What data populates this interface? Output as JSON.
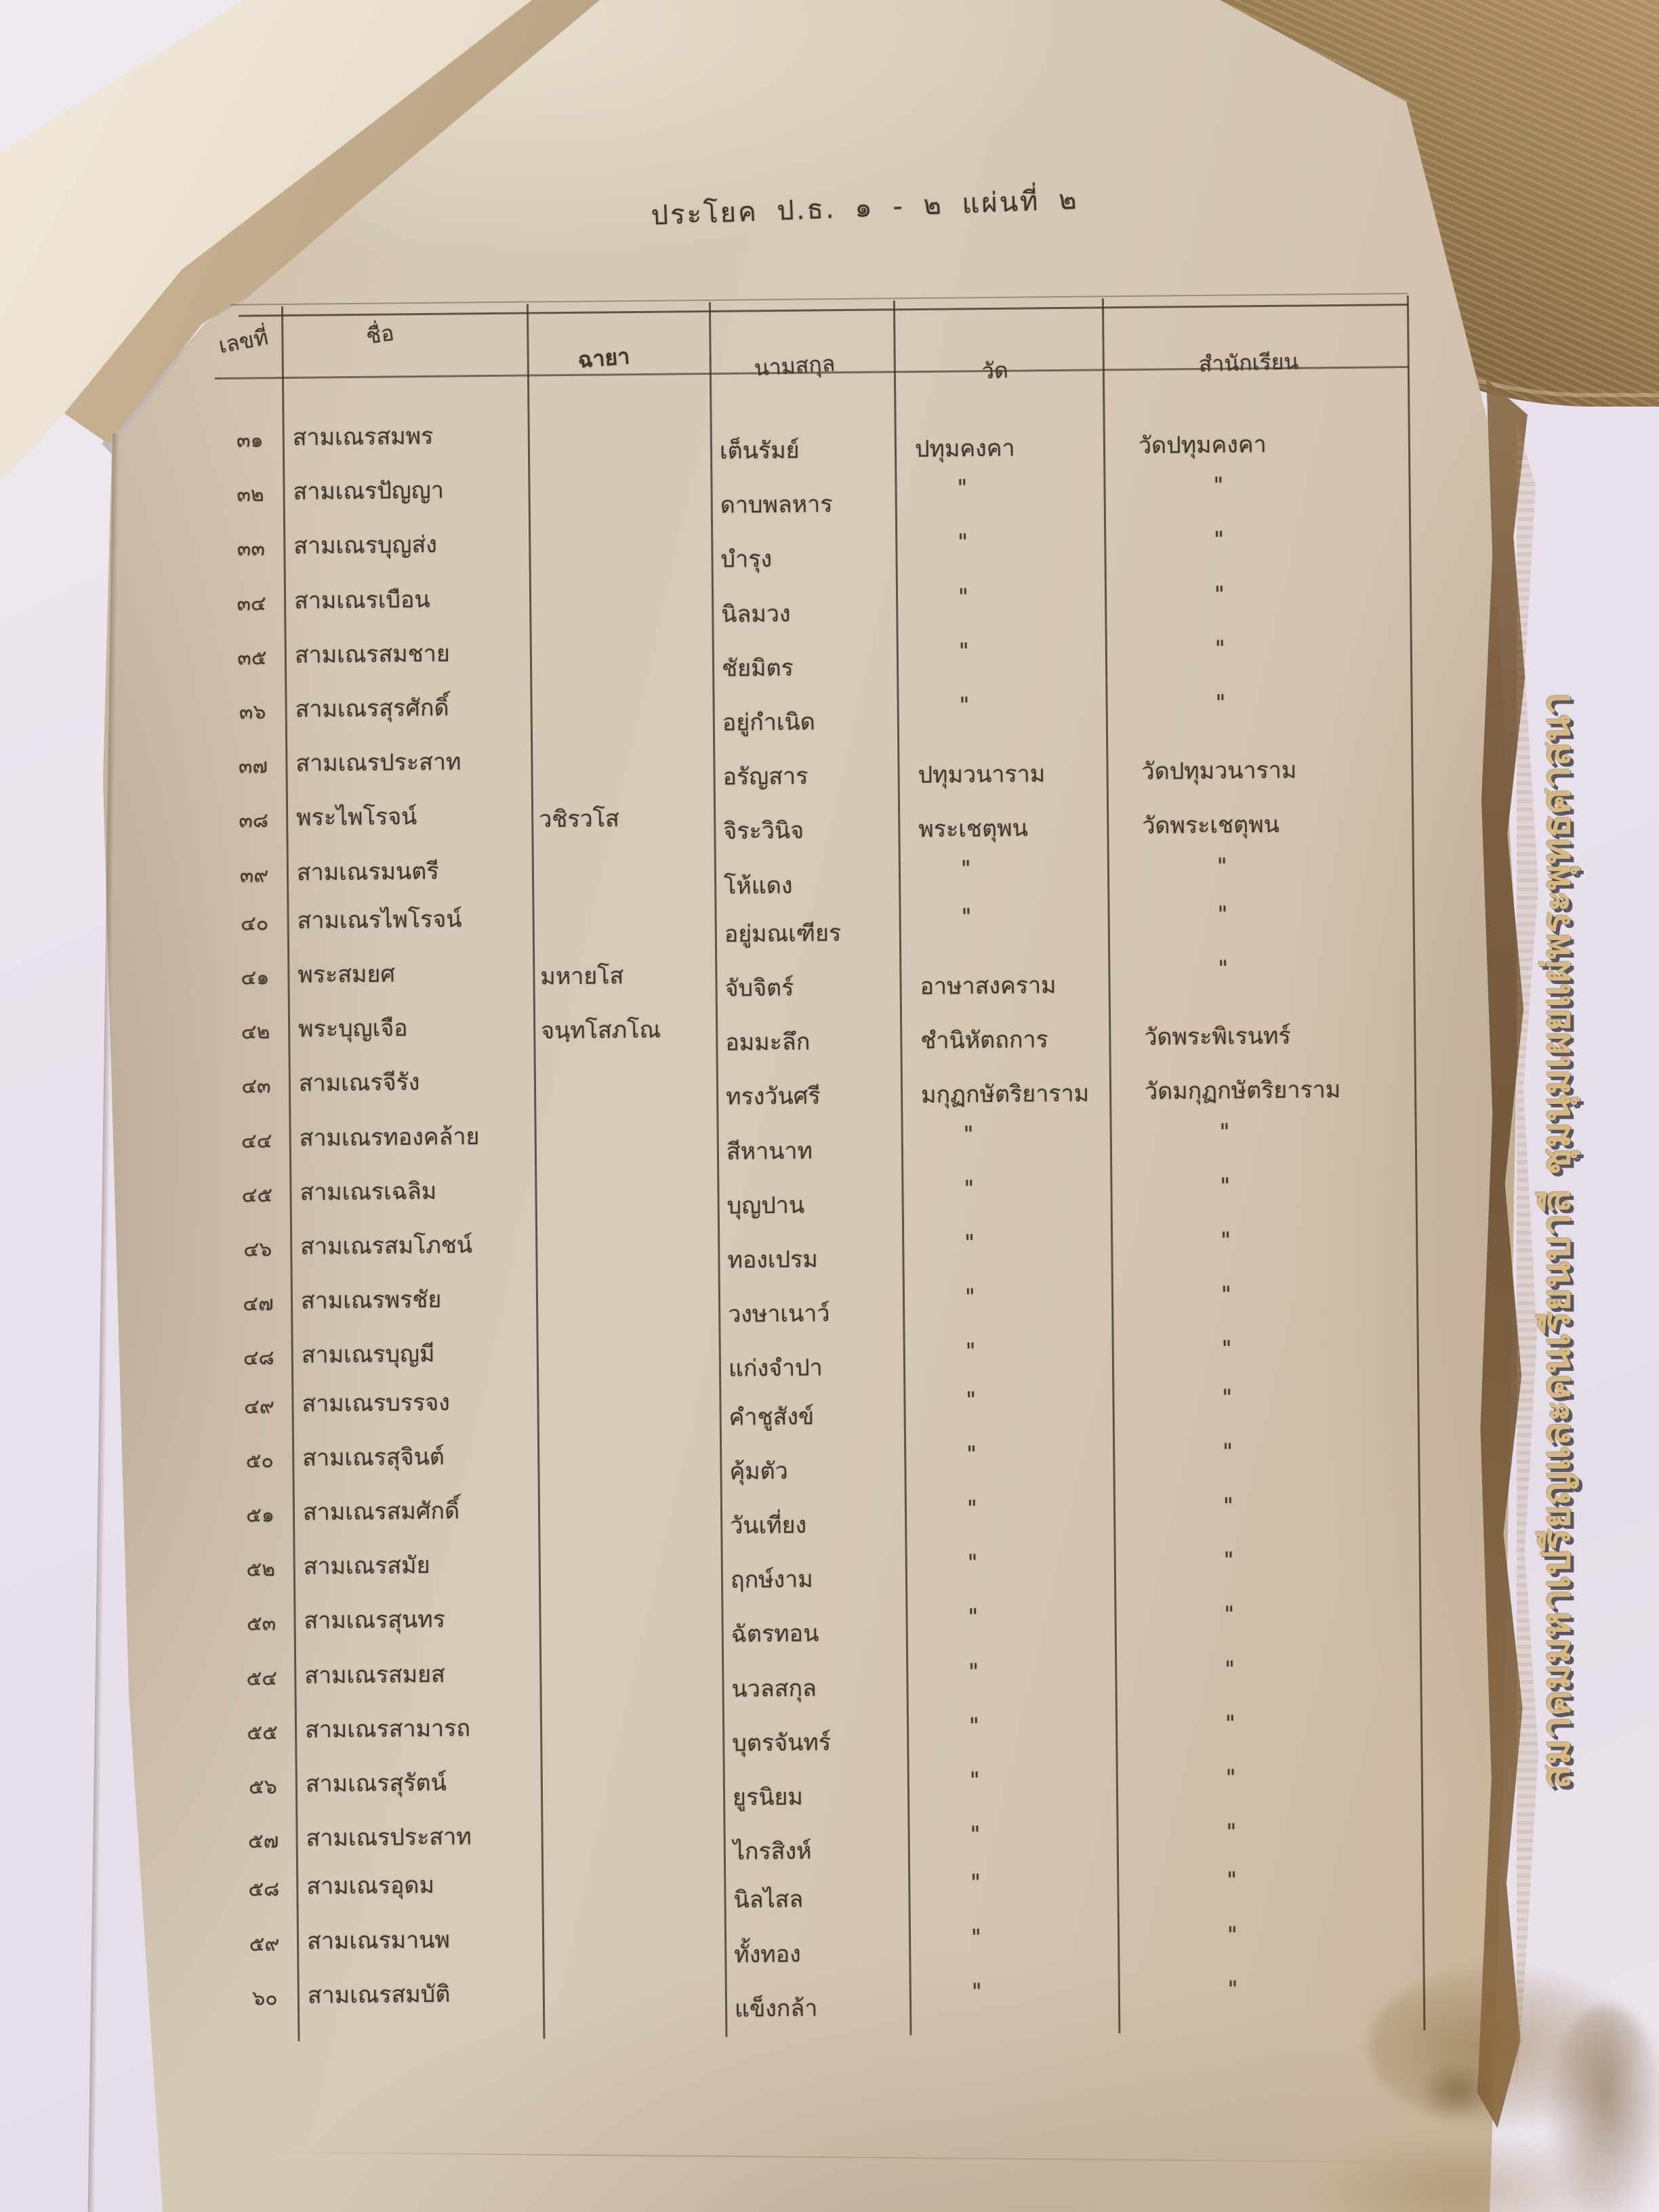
{
  "title": "ประโยค ป.ธ. ๑ - ๒ แผ่นที่ ๒",
  "watermark": {
    "text": "สมาคมมหาเปรียญและคนเรียนบาลี ชุมนุมเผยแผ่พระพุทธศาสนา",
    "color": "#d9b87e"
  },
  "colors": {
    "background": "#e8e1ea",
    "paper": "#d3c5b2",
    "ink": "#42372b",
    "table_line": "#3e3328",
    "page_stack_brown": "#8d6f46",
    "stain_brown": "#8a6a3f"
  },
  "table": {
    "headers": [
      "เลขที่",
      "ชื่อ",
      "ฉายา",
      "นามสกุล",
      "วัด",
      "สำนักเรียน"
    ],
    "ditto_mark": "\"",
    "rows": [
      [
        "๓๑",
        "สามเณรสมพร",
        "",
        "เต็นรัมย์",
        "ปทุมคงคา",
        "วัดปทุมคงคา"
      ],
      [
        "๓๒",
        "สามเณรปัญญา",
        "",
        "ดาบพลหาร",
        "\"",
        "\""
      ],
      [
        "๓๓",
        "สามเณรบุญส่ง",
        "",
        "บำรุง",
        "\"",
        "\""
      ],
      [
        "๓๔",
        "สามเณรเบือน",
        "",
        "นิลมวง",
        "\"",
        "\""
      ],
      [
        "๓๕",
        "สามเณรสมชาย",
        "",
        "ชัยมิตร",
        "\"",
        "\""
      ],
      [
        "๓๖",
        "สามเณรสุรศักดิ์",
        "",
        "อยู่กำเนิด",
        "\"",
        "\""
      ],
      [
        "๓๗",
        "สามเณรประสาท",
        "",
        "อรัญสาร",
        "ปทุมวนาราม",
        "วัดปทุมวนาราม"
      ],
      [
        "๓๘",
        "พระไพโรจน์",
        "วชิรวโส",
        "จิระวินิจ",
        "พระเชตุพน",
        "วัดพระเชตุพน"
      ],
      [
        "๓๙",
        "สามเณรมนตรี",
        "",
        "โห้แดง",
        "\"",
        "\""
      ],
      [
        "๔๐",
        "สามเณรไพโรจน์",
        "",
        "อยู่มณเฑียร",
        "\"",
        "\""
      ],
      [
        "๔๑",
        "พระสมยศ",
        "มหายโส",
        "จับจิตร์",
        "อาษาสงคราม",
        "\""
      ],
      [
        "๔๒",
        "พระบุญเจือ",
        "จนฺทโสภโณ",
        "อมมะลึก",
        "ชำนิหัตถการ",
        "วัดพระพิเรนทร์"
      ],
      [
        "๔๓",
        "สามเณรจีรัง",
        "",
        "ทรงวันศรี",
        "มกุฏกษัตริยาราม",
        "วัดมกุฏกษัตริยาราม"
      ],
      [
        "๔๔",
        "สามเณรทองคล้าย",
        "",
        "สีหานาท",
        "\"",
        "\""
      ],
      [
        "๔๕",
        "สามเณรเฉลิม",
        "",
        "บุญปาน",
        "\"",
        "\""
      ],
      [
        "๔๖",
        "สามเณรสมโภชน์",
        "",
        "ทองเปรม",
        "\"",
        "\""
      ],
      [
        "๔๗",
        "สามเณรพรชัย",
        "",
        "วงษาเนาว์",
        "\"",
        "\""
      ],
      [
        "๔๘",
        "สามเณรบุญมี",
        "",
        "แก่งจำปา",
        "\"",
        "\""
      ],
      [
        "๔๙",
        "สามเณรบรรจง",
        "",
        "คำชูสังข์",
        "\"",
        "\""
      ],
      [
        "๕๐",
        "สามเณรสุจินต์",
        "",
        "คุ้มตัว",
        "\"",
        "\""
      ],
      [
        "๕๑",
        "สามเณรสมศักดิ์",
        "",
        "วันเที่ยง",
        "\"",
        "\""
      ],
      [
        "๕๒",
        "สามเณรสมัย",
        "",
        "ฤกษ์งาม",
        "\"",
        "\""
      ],
      [
        "๕๓",
        "สามเณรสุนทร",
        "",
        "ฉัตรทอน",
        "\"",
        "\""
      ],
      [
        "๕๔",
        "สามเณรสมยส",
        "",
        "นวลสกุล",
        "\"",
        "\""
      ],
      [
        "๕๕",
        "สามเณรสามารถ",
        "",
        "บุตรจันทร์",
        "\"",
        "\""
      ],
      [
        "๕๖",
        "สามเณรสุรัตน์",
        "",
        "ยูรนิยม",
        "\"",
        "\""
      ],
      [
        "๕๗",
        "สามเณรประสาท",
        "",
        "ไกรสิงห์",
        "\"",
        "\""
      ],
      [
        "๕๘",
        "สามเณรอุดม",
        "",
        "นิลไสล",
        "\"",
        "\""
      ],
      [
        "๕๙",
        "สามเณรมานพ",
        "",
        "ทั้งทอง",
        "\"",
        "\""
      ],
      [
        "๖๐",
        "สามเณรสมบัติ",
        "",
        "แข็งกล้า",
        "\"",
        "\""
      ]
    ]
  }
}
